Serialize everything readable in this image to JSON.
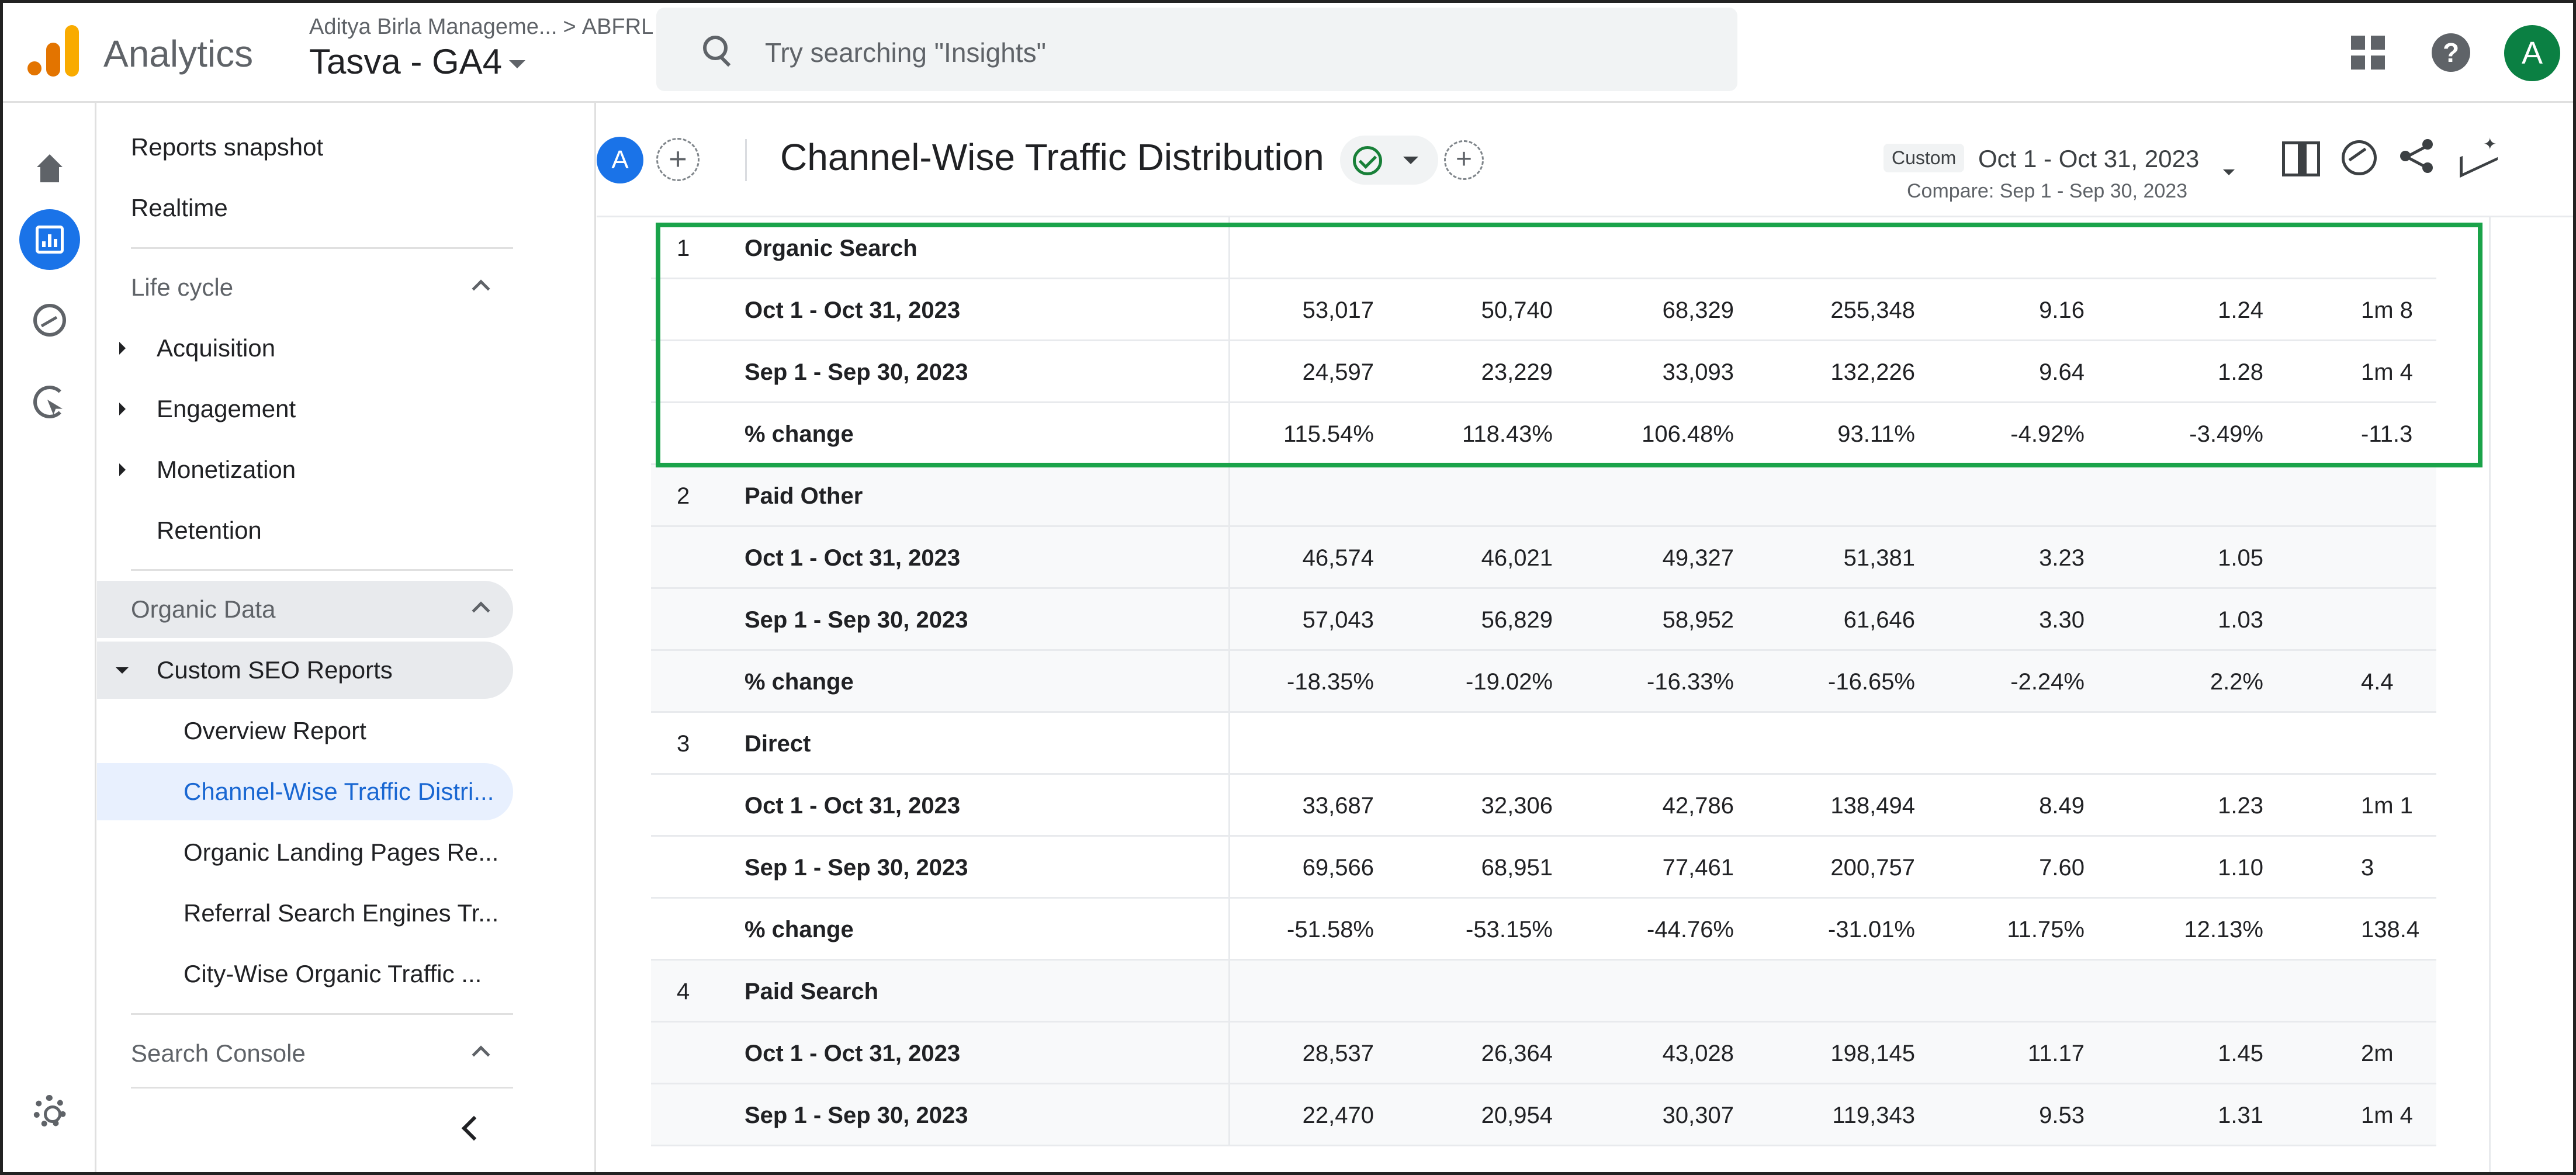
{
  "header": {
    "app_name": "Analytics",
    "account": "Aditya Birla Manageme...",
    "account_separator": ">",
    "account_child": "ABFRL",
    "property": "Tasva - GA4",
    "search_placeholder": "Try searching \"Insights\"",
    "user_initial": "A",
    "help_glyph": "?"
  },
  "sidebar": {
    "items": [
      {
        "label": "Reports snapshot"
      },
      {
        "label": "Realtime"
      },
      {
        "label": "Life cycle"
      },
      {
        "label": "Acquisition"
      },
      {
        "label": "Engagement"
      },
      {
        "label": "Monetization"
      },
      {
        "label": "Retention"
      },
      {
        "label": "Organic Data"
      },
      {
        "label": "Custom SEO Reports"
      },
      {
        "label": "Overview Report"
      },
      {
        "label": "Channel-Wise Traffic Distri..."
      },
      {
        "label": "Organic Landing Pages Re..."
      },
      {
        "label": "Referral Search Engines Tr..."
      },
      {
        "label": "City-Wise Organic Traffic ..."
      },
      {
        "label": "Search Console"
      }
    ]
  },
  "report": {
    "comparison_initial": "A",
    "add_glyph": "+",
    "title": "Channel-Wise Traffic Distribution",
    "date_chip": "Custom",
    "date_range": "Oct 1 - Oct 31, 2023",
    "compare_range": "Compare: Sep 1 - Sep 30, 2023"
  },
  "table": {
    "rows": [
      {
        "num": "1",
        "label": "Organic Search",
        "values": [
          "",
          "",
          "",
          "",
          "",
          "",
          ""
        ]
      },
      {
        "num": "",
        "label": "Oct 1 - Oct 31, 2023",
        "values": [
          "53,017",
          "50,740",
          "68,329",
          "255,348",
          "9.16",
          "1.24",
          "1m 8"
        ]
      },
      {
        "num": "",
        "label": "Sep 1 - Sep 30, 2023",
        "values": [
          "24,597",
          "23,229",
          "33,093",
          "132,226",
          "9.64",
          "1.28",
          "1m 4"
        ]
      },
      {
        "num": "",
        "label": "% change",
        "values": [
          "115.54%",
          "118.43%",
          "106.48%",
          "93.11%",
          "-4.92%",
          "-3.49%",
          "-11.3"
        ]
      },
      {
        "num": "2",
        "label": "Paid Other",
        "values": [
          "",
          "",
          "",
          "",
          "",
          "",
          ""
        ]
      },
      {
        "num": "",
        "label": "Oct 1 - Oct 31, 2023",
        "values": [
          "46,574",
          "46,021",
          "49,327",
          "51,381",
          "3.23",
          "1.05",
          ""
        ]
      },
      {
        "num": "",
        "label": "Sep 1 - Sep 30, 2023",
        "values": [
          "57,043",
          "56,829",
          "58,952",
          "61,646",
          "3.30",
          "1.03",
          ""
        ]
      },
      {
        "num": "",
        "label": "% change",
        "values": [
          "-18.35%",
          "-19.02%",
          "-16.33%",
          "-16.65%",
          "-2.24%",
          "2.2%",
          "4.4"
        ]
      },
      {
        "num": "3",
        "label": "Direct",
        "values": [
          "",
          "",
          "",
          "",
          "",
          "",
          ""
        ]
      },
      {
        "num": "",
        "label": "Oct 1 - Oct 31, 2023",
        "values": [
          "33,687",
          "32,306",
          "42,786",
          "138,494",
          "8.49",
          "1.23",
          "1m 1"
        ]
      },
      {
        "num": "",
        "label": "Sep 1 - Sep 30, 2023",
        "values": [
          "69,566",
          "68,951",
          "77,461",
          "200,757",
          "7.60",
          "1.10",
          "3"
        ]
      },
      {
        "num": "",
        "label": "% change",
        "values": [
          "-51.58%",
          "-53.15%",
          "-44.76%",
          "-31.01%",
          "11.75%",
          "12.13%",
          "138.4"
        ]
      },
      {
        "num": "4",
        "label": "Paid Search",
        "values": [
          "",
          "",
          "",
          "",
          "",
          "",
          ""
        ]
      },
      {
        "num": "",
        "label": "Oct 1 - Oct 31, 2023",
        "values": [
          "28,537",
          "26,364",
          "43,028",
          "198,145",
          "11.17",
          "1.45",
          "2m"
        ]
      },
      {
        "num": "",
        "label": "Sep 1 - Sep 30, 2023",
        "values": [
          "22,470",
          "20,954",
          "30,307",
          "119,343",
          "9.53",
          "1.31",
          "1m 4"
        ]
      }
    ]
  },
  "colors": {
    "accent": "#1a73e8",
    "highlight_box": "#1aa34a",
    "logo_orange": "#e37400",
    "logo_yellow": "#f9ab00",
    "avatar_green": "#0b8043"
  },
  "icons": [
    "search-icon",
    "apps-grid-icon",
    "help-icon",
    "home-icon",
    "reports-icon",
    "explore-icon",
    "advertising-icon",
    "settings-icon",
    "chevron-left-icon",
    "check-circle-icon",
    "compare-icon",
    "insights-icon",
    "share-icon",
    "trend-sparkle-icon"
  ]
}
